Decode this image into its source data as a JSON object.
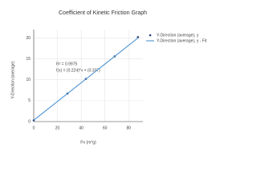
{
  "chart_data": {
    "type": "scatter",
    "title": "Coefficient of Kinetic Friction Graph",
    "x_label": "Fn (m*g)",
    "y_label": "Y-Direction (average)",
    "annotations": [
      "R² = 0.9975",
      "f(x) = (0.224)*x + (0.337)"
    ],
    "series": [
      {
        "name": "Y-Direction (average), y",
        "color": "#1f3b73",
        "mode": "markers",
        "x": [
          0,
          28.4,
          43.9,
          68.2,
          87.8
        ],
        "values": [
          0.3,
          6.7,
          10.2,
          15.6,
          20.2
        ]
      },
      {
        "name": "Y-Direction (average), y - Fit",
        "color": "#5b9bd5",
        "mode": "line",
        "x": [
          0,
          87.8
        ],
        "values": [
          0.337,
          20
        ]
      }
    ],
    "xlim": [
      0,
      92
    ],
    "xticks": [
      0,
      20,
      40,
      60,
      80
    ],
    "ylim": [
      0,
      22
    ],
    "yticks": [
      0,
      5,
      10,
      15,
      20
    ],
    "grid": true,
    "legend": "top-right"
  }
}
